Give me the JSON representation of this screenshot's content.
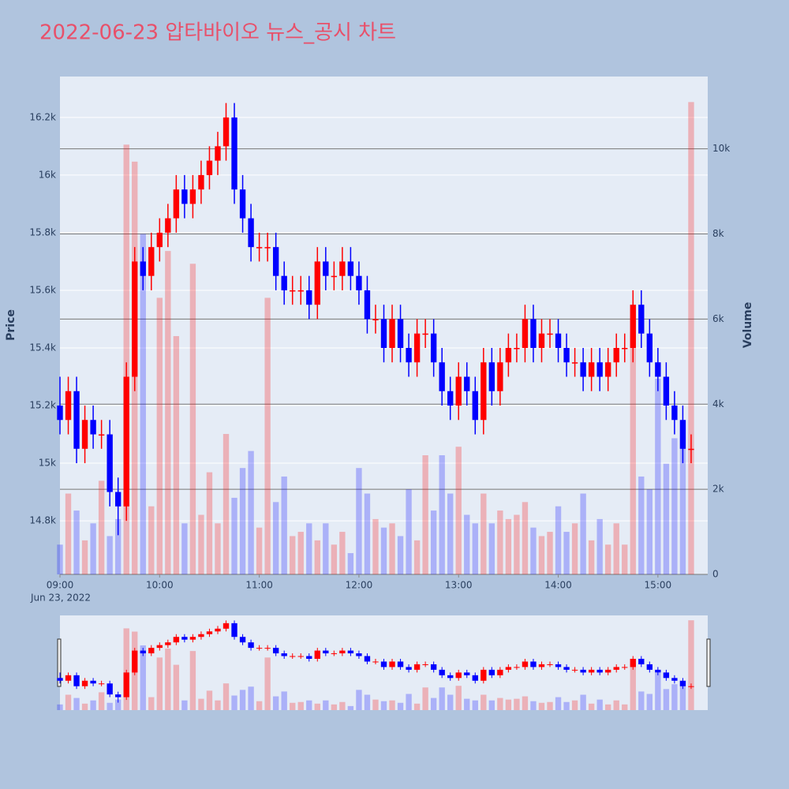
{
  "chart_data": {
    "type": "candlestick",
    "title": "2022-06-23 압타바이오 뉴스_공시 차트",
    "y_axis_label": "Price",
    "y2_axis_label": "Volume",
    "x_axis_sublabel": "Jun 23, 2022",
    "increasing_color": "#ff0000",
    "decreasing_color": "#0000ff",
    "grid": true,
    "x": [
      "09:00",
      "09:05",
      "09:10",
      "09:15",
      "09:20",
      "09:25",
      "09:30",
      "09:35",
      "09:40",
      "09:45",
      "09:50",
      "09:55",
      "10:00",
      "10:05",
      "10:10",
      "10:15",
      "10:20",
      "10:25",
      "10:30",
      "10:35",
      "10:40",
      "10:45",
      "10:50",
      "10:55",
      "11:00",
      "11:05",
      "11:10",
      "11:15",
      "11:20",
      "11:25",
      "11:30",
      "11:35",
      "11:40",
      "11:45",
      "11:50",
      "11:55",
      "12:00",
      "12:05",
      "12:10",
      "12:15",
      "12:20",
      "12:25",
      "12:30",
      "12:35",
      "12:40",
      "12:45",
      "12:50",
      "12:55",
      "13:00",
      "13:05",
      "13:10",
      "13:15",
      "13:20",
      "13:25",
      "13:30",
      "13:35",
      "13:40",
      "13:45",
      "13:50",
      "13:55",
      "14:00",
      "14:05",
      "14:10",
      "14:15",
      "14:20",
      "14:25",
      "14:30",
      "14:35",
      "14:40",
      "14:45",
      "14:50",
      "14:55",
      "15:00",
      "15:05",
      "15:10",
      "15:15",
      "15:20"
    ],
    "open": [
      15200,
      15150,
      15250,
      15050,
      15150,
      15100,
      15100,
      14900,
      14850,
      15300,
      15700,
      15650,
      15750,
      15800,
      15850,
      15950,
      15900,
      15950,
      16000,
      16050,
      16100,
      16200,
      15950,
      15850,
      15750,
      15750,
      15750,
      15650,
      15600,
      15600,
      15600,
      15550,
      15700,
      15650,
      15650,
      15700,
      15650,
      15600,
      15500,
      15500,
      15400,
      15500,
      15400,
      15350,
      15450,
      15450,
      15350,
      15250,
      15200,
      15300,
      15250,
      15150,
      15350,
      15250,
      15350,
      15400,
      15400,
      15500,
      15400,
      15450,
      15450,
      15400,
      15350,
      15350,
      15300,
      15350,
      15300,
      15350,
      15400,
      15400,
      15550,
      15450,
      15350,
      15300,
      15200,
      15150,
      15050
    ],
    "high": [
      15300,
      15300,
      15300,
      15200,
      15200,
      15150,
      15150,
      14950,
      15350,
      15750,
      15750,
      15800,
      15850,
      15900,
      16000,
      16000,
      16000,
      16050,
      16100,
      16150,
      16250,
      16250,
      16000,
      15900,
      15800,
      15800,
      15800,
      15700,
      15650,
      15650,
      15650,
      15750,
      15750,
      15700,
      15750,
      15750,
      15700,
      15650,
      15550,
      15550,
      15550,
      15550,
      15450,
      15500,
      15500,
      15500,
      15400,
      15300,
      15350,
      15350,
      15300,
      15400,
      15400,
      15400,
      15450,
      15450,
      15550,
      15550,
      15500,
      15500,
      15500,
      15450,
      15400,
      15400,
      15400,
      15400,
      15400,
      15450,
      15450,
      15600,
      15600,
      15500,
      15400,
      15350,
      15250,
      15200,
      15100
    ],
    "low": [
      15100,
      15100,
      15000,
      15000,
      15050,
      15050,
      14850,
      14750,
      14800,
      15250,
      15600,
      15600,
      15700,
      15750,
      15800,
      15850,
      15850,
      15900,
      15950,
      16000,
      16050,
      15900,
      15800,
      15700,
      15700,
      15700,
      15600,
      15550,
      15550,
      15550,
      15500,
      15500,
      15600,
      15600,
      15600,
      15600,
      15550,
      15450,
      15450,
      15350,
      15350,
      15350,
      15300,
      15300,
      15400,
      15300,
      15200,
      15150,
      15150,
      15200,
      15100,
      15100,
      15200,
      15200,
      15300,
      15350,
      15350,
      15350,
      15350,
      15400,
      15350,
      15300,
      15300,
      15250,
      15250,
      15250,
      15250,
      15300,
      15350,
      15350,
      15400,
      15300,
      15250,
      15150,
      15100,
      15000,
      15000
    ],
    "close": [
      15150,
      15250,
      15050,
      15150,
      15100,
      15100,
      14900,
      14850,
      15300,
      15700,
      15650,
      15750,
      15800,
      15850,
      15950,
      15900,
      15950,
      16000,
      16050,
      16100,
      16200,
      15950,
      15850,
      15750,
      15750,
      15750,
      15650,
      15600,
      15600,
      15600,
      15550,
      15700,
      15650,
      15650,
      15700,
      15650,
      15600,
      15500,
      15500,
      15400,
      15500,
      15400,
      15350,
      15450,
      15450,
      15350,
      15250,
      15200,
      15300,
      15250,
      15150,
      15350,
      15250,
      15350,
      15400,
      15400,
      15500,
      15400,
      15450,
      15450,
      15400,
      15350,
      15350,
      15300,
      15350,
      15300,
      15350,
      15400,
      15400,
      15550,
      15450,
      15350,
      15300,
      15200,
      15150,
      15050,
      15050
    ],
    "volume": [
      700,
      1900,
      1500,
      800,
      1200,
      2200,
      900,
      1300,
      10100,
      9700,
      8000,
      1600,
      6500,
      7600,
      5600,
      1200,
      7300,
      1400,
      2400,
      1200,
      3300,
      1800,
      2500,
      2900,
      1100,
      6500,
      1700,
      2300,
      900,
      1000,
      1200,
      800,
      1200,
      700,
      1000,
      500,
      2500,
      1900,
      1300,
      1100,
      1200,
      900,
      2000,
      800,
      2800,
      1500,
      2800,
      1900,
      3000,
      1400,
      1200,
      1900,
      1200,
      1500,
      1300,
      1400,
      1700,
      1100,
      900,
      1000,
      1600,
      1000,
      1200,
      1900,
      800,
      1300,
      700,
      1200,
      700,
      5700,
      2300,
      2000,
      4600,
      2600,
      3200,
      3600,
      11100
    ],
    "xlim": [
      "09:00",
      "15:30"
    ],
    "xticks": [
      "09:00",
      "10:00",
      "11:00",
      "12:00",
      "13:00",
      "14:00",
      "15:00"
    ],
    "ylim": [
      14614,
      16342
    ],
    "yticks": [
      {
        "value": 14800,
        "label": "14.8k"
      },
      {
        "value": 15000,
        "label": "15k"
      },
      {
        "value": 15200,
        "label": "15.2k"
      },
      {
        "value": 15400,
        "label": "15.4k"
      },
      {
        "value": 15600,
        "label": "15.6k"
      },
      {
        "value": 15800,
        "label": "15.8k"
      },
      {
        "value": 16000,
        "label": "16k"
      },
      {
        "value": 16200,
        "label": "16.2k"
      }
    ],
    "y2lim": [
      0,
      11700
    ],
    "y2ticks": [
      0,
      {
        "value": 2000,
        "label": "2k"
      },
      {
        "value": 4000,
        "label": "4k"
      },
      {
        "value": 6000,
        "label": "6k"
      },
      {
        "value": 8000,
        "label": "8k"
      },
      {
        "value": 10000,
        "label": "10k"
      }
    ]
  }
}
